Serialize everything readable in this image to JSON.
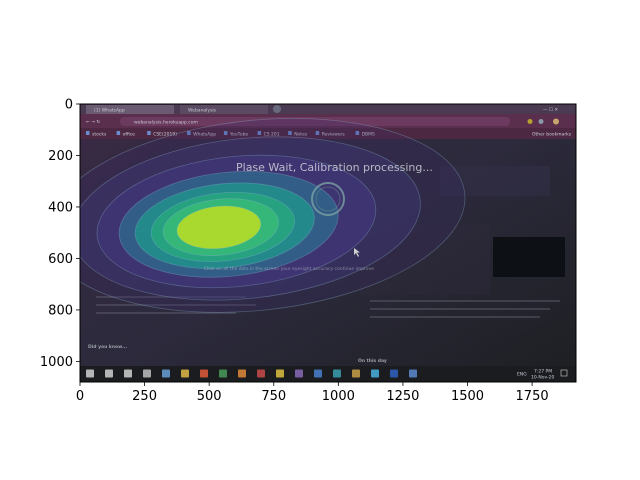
{
  "chart_data": {
    "type": "heatmap",
    "title": "",
    "xlabel": "",
    "ylabel": "",
    "x_ticks": [
      0,
      250,
      500,
      750,
      1000,
      1250,
      1500,
      1750
    ],
    "y_ticks": [
      0,
      200,
      400,
      600,
      800,
      1000
    ],
    "xlim": [
      0,
      1920
    ],
    "ylim": [
      1080,
      0
    ],
    "hotspot_center": [
      530,
      480
    ],
    "colormap": "viridis",
    "grid": false
  },
  "screenshot": {
    "browser_tabs": [
      "(1) WhatsApp",
      "Webanalysis"
    ],
    "address": "webanalysis.herokuapp.com",
    "bookmarks": [
      "stocks",
      "office",
      "CSE(2019)",
      "WhatsApp",
      "YouTube",
      "CS 201",
      "Notes",
      "Reviewers",
      "DBMS"
    ],
    "other_bookmarks": "Other bookmarks",
    "calibration_message": "Plase Wait, Calibration processing...",
    "hint_text": "Click on all the dots in the screen your eyesight accuracy continue improve",
    "did_you_know": "Did you know...",
    "on_this_day": "On this day",
    "taskbar_lang": "ENG",
    "taskbar_time": "7:27 PM",
    "taskbar_date": "10-Nov-20"
  },
  "colors": {
    "heat_low": "#443983",
    "heat_mid": "#21918c",
    "heat_high": "#35b779",
    "heat_peak": "#a9d82f"
  }
}
